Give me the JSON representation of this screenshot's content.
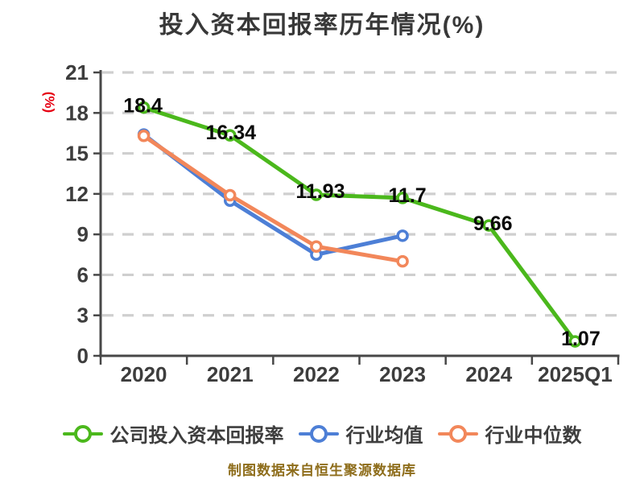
{
  "title": {
    "text": "投入资本回报率历年情况(%)",
    "color": "#383838"
  },
  "y_axis": {
    "unit_text": "(%)",
    "unit_color": "#e60012"
  },
  "footer": {
    "text": "制图数据来自恒生聚源数据库",
    "color": "#8e6d1b"
  },
  "chart_data": {
    "type": "line",
    "categories": [
      "2020",
      "2021",
      "2022",
      "2023",
      "2024",
      "2025Q1"
    ],
    "series": [
      {
        "name": "公司投入资本回报率",
        "color": "#4bb81c",
        "values": [
          18.4,
          16.34,
          11.93,
          11.7,
          9.66,
          1.07
        ],
        "labels": [
          "18.4",
          "16.34",
          "11.93",
          "11.7",
          "9.66",
          "1.07"
        ]
      },
      {
        "name": "行业均值",
        "color": "#4d7fd6",
        "values": [
          16.4,
          11.5,
          7.5,
          8.9
        ]
      },
      {
        "name": "行业中位数",
        "color": "#f2875a",
        "values": [
          16.3,
          11.9,
          8.1,
          7.0
        ]
      }
    ],
    "ylim": [
      0,
      21
    ],
    "y_ticks": [
      0,
      3,
      6,
      9,
      12,
      15,
      18,
      21
    ],
    "grid": "horizontal-dashed",
    "legend_position": "bottom",
    "axis_color": "#474747",
    "grid_color": "#cfcfcf",
    "tick_label_color": "#3d3d3d",
    "data_label_color": "#0a0a0a",
    "marker_style": "white-filled-circle"
  }
}
